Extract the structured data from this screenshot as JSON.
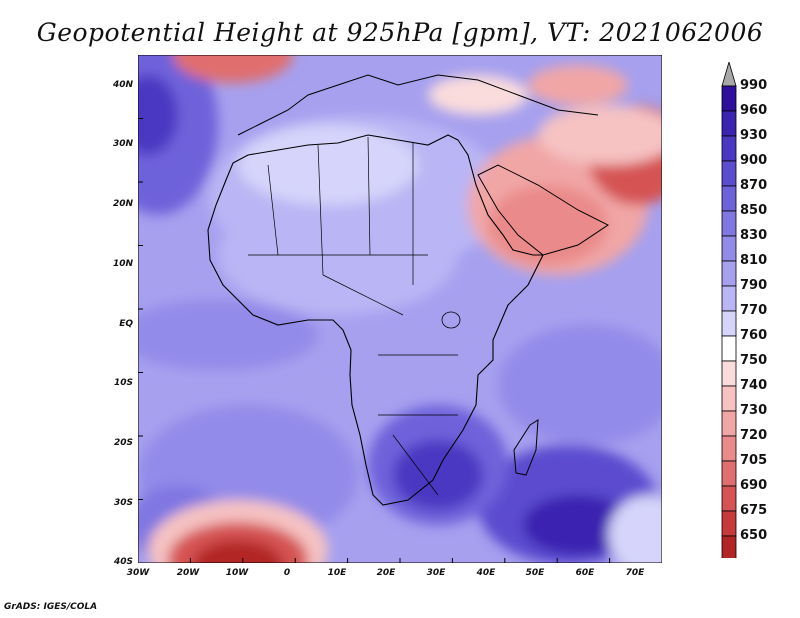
{
  "title": "Geopotential Height at 925hPa [gpm], VT: 2021062006",
  "credit": "GrADS: IGES/COLA",
  "lat_labels": [
    "40N",
    "30N",
    "20N",
    "10N",
    "EQ",
    "10S",
    "20S",
    "30S",
    "40S"
  ],
  "lon_labels": [
    "30W",
    "20W",
    "10W",
    "0",
    "10E",
    "20E",
    "30E",
    "40E",
    "50E",
    "60E",
    "70E"
  ],
  "colorbar": {
    "labels": [
      "990",
      "960",
      "930",
      "900",
      "870",
      "850",
      "830",
      "810",
      "790",
      "770",
      "760",
      "750",
      "740",
      "730",
      "720",
      "705",
      "690",
      "675",
      "650"
    ],
    "colors": [
      "#2d0f9c",
      "#3a23b0",
      "#4b38c2",
      "#5c4ccf",
      "#6e62da",
      "#8077e2",
      "#938be9",
      "#a6a0ef",
      "#bab5f4",
      "#d6d4fa",
      "#ffffff",
      "#fadcdc",
      "#f6c2c2",
      "#f1a6a6",
      "#ea8a8a",
      "#e06e6e",
      "#d55353",
      "#c63a3a",
      "#b32525"
    ],
    "over_color": "#a8a8a8",
    "under_color": "#aa1818"
  }
}
